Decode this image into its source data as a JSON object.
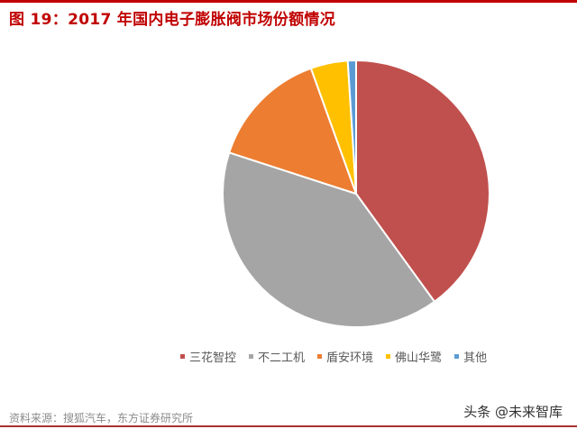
{
  "title": "图 19：2017 年国内电子膨胀阀市场份额情况",
  "source": "资料来源：搜狐汽车，东方证券研究所",
  "watermark": "头条 @未来智库",
  "accent_color": "#c00000",
  "chart_data": {
    "type": "pie",
    "title": "图 19：2017 年国内电子膨胀阀市场份额情况",
    "categories": [
      "三花智控",
      "不二工机",
      "盾安环境",
      "佛山华鹭",
      "其他"
    ],
    "values": [
      40.0,
      40.0,
      14.5,
      4.5,
      1.0
    ],
    "unit": "%",
    "colors": [
      "#c0504d",
      "#a5a5a5",
      "#ed7d31",
      "#ffc000",
      "#5b9bd5"
    ],
    "start_angle_deg": 0,
    "direction": "clockwise",
    "legend_position": "bottom",
    "data_labels": false
  },
  "legend": [
    {
      "label": "三花智控",
      "color": "#c0504d"
    },
    {
      "label": "不二工机",
      "color": "#a5a5a5"
    },
    {
      "label": "盾安环境",
      "color": "#ed7d31"
    },
    {
      "label": "佛山华鹭",
      "color": "#ffc000"
    },
    {
      "label": "其他",
      "color": "#5b9bd5"
    }
  ]
}
